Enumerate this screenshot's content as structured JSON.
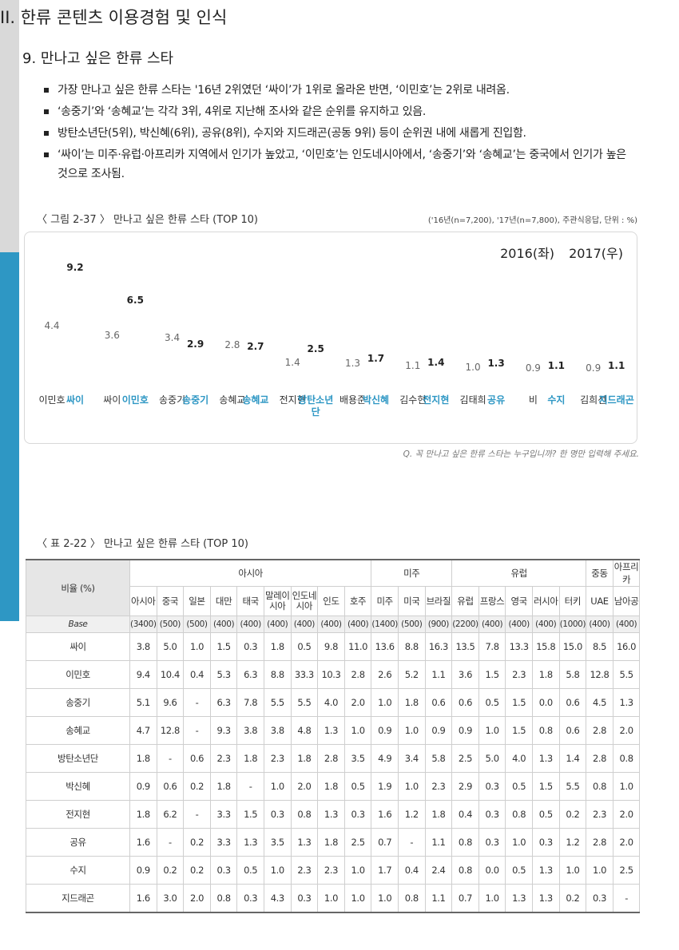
{
  "header": {
    "section": "II. 한류 콘텐츠 이용경험 및 인식",
    "subsection": "9. 만나고 싶은 한류 스타"
  },
  "bullets": [
    "가장 만나고 싶은 한류 스타는 '16년 2위였던 ‘싸이’가 1위로 올라온 반면, ‘이민호’는 2위로 내려옴.",
    "‘송중기’와 ‘송혜교’는 각각 3위, 4위로 지난해 조사와 같은 순위를 유지하고 있음.",
    "방탄소년단(5위), 박신혜(6위), 공유(8위), 수지와 지드래곤(공동 9위) 등이 순위권 내에 새롭게 진입함.",
    "‘싸이’는 미주·유럽·아프리카 지역에서 인기가 높았고, ‘이민호’는 인도네시아에서, ‘송중기’와 ‘송혜교’는 중국에서 인기가 높은 것으로 조사됨."
  ],
  "figure": {
    "caption": "〈 그림 2-37 〉 만나고 싶은 한류 스타 (TOP 10)",
    "note": "('16년(n=7,200), '17년(n=7,800), 주관식응답, 단위 : %)",
    "footnote": "Q. 꼭 만나고 싶은 한류 스타는 누구입니까? 한 명만 입력해 주세요."
  },
  "chart_data": {
    "type": "bar",
    "legend": "top-right",
    "series": [
      {
        "name": "2016(좌)",
        "color": "#d9d9d9",
        "values": [
          4.4,
          3.6,
          3.4,
          2.8,
          1.4,
          1.3,
          1.1,
          1.0,
          0.9,
          0.9
        ],
        "value_labels": [
          "4.4",
          "3.6",
          "3.4",
          "2.8",
          "1.4",
          "1.3",
          "1.1",
          "1.0",
          "0.9",
          "0.9"
        ],
        "labels": [
          "이민호",
          "싸이",
          "송중기",
          "송혜교",
          "전지현",
          "배용준",
          "김수현",
          "김태희",
          "비",
          "김희선"
        ]
      },
      {
        "name": "2017(우)",
        "color": "#2e97c4",
        "values": [
          9.2,
          6.5,
          2.9,
          2.7,
          2.5,
          1.7,
          1.4,
          1.3,
          1.1,
          1.1
        ],
        "value_labels": [
          "9.2",
          "6.5",
          "2.9",
          "2.7",
          "2.5",
          "1.7",
          "1.4",
          "1.3",
          "1.1",
          "1.1"
        ],
        "labels": [
          "싸이",
          "이민호",
          "송중기",
          "송혜교",
          "방탄소년단",
          "박신혜",
          "전지현",
          "공유",
          "수지",
          "지드래곤"
        ]
      }
    ]
  },
  "table": {
    "caption": "〈 표 2-22 〉 만나고 싶은 한류 스타 (TOP 10)",
    "corner": "비율 (%)",
    "groups": [
      {
        "label": "아시아",
        "columns": [
          "아시아",
          "중국",
          "일본",
          "대만",
          "태국",
          "말레이시아",
          "인도네시아",
          "인도",
          "호주"
        ]
      },
      {
        "label": "미주",
        "columns": [
          "미주",
          "미국",
          "브라질"
        ]
      },
      {
        "label": "유럽",
        "columns": [
          "유럽",
          "프랑스",
          "영국",
          "러시아",
          "터키"
        ]
      },
      {
        "label": "중동",
        "columns": [
          "UAE"
        ]
      },
      {
        "label": "아프리카",
        "columns": [
          "남아공"
        ]
      }
    ],
    "base": {
      "label": "Base",
      "cells": [
        "(3400)",
        "(500)",
        "(500)",
        "(400)",
        "(400)",
        "(400)",
        "(400)",
        "(400)",
        "(400)",
        "(1400)",
        "(500)",
        "(900)",
        "(2200)",
        "(400)",
        "(400)",
        "(400)",
        "(1000)",
        "(400)",
        "(400)"
      ]
    },
    "rows": [
      {
        "label": "싸이",
        "cells": [
          "3.8",
          "5.0",
          "1.0",
          "1.5",
          "0.3",
          "1.8",
          "0.5",
          "9.8",
          "11.0",
          "13.6",
          "8.8",
          "16.3",
          "13.5",
          "7.8",
          "13.3",
          "15.8",
          "15.0",
          "8.5",
          "16.0"
        ]
      },
      {
        "label": "이민호",
        "cells": [
          "9.4",
          "10.4",
          "0.4",
          "5.3",
          "6.3",
          "8.8",
          "33.3",
          "10.3",
          "2.8",
          "2.6",
          "5.2",
          "1.1",
          "3.6",
          "1.5",
          "2.3",
          "1.8",
          "5.8",
          "12.8",
          "5.5"
        ]
      },
      {
        "label": "송중기",
        "cells": [
          "5.1",
          "9.6",
          "-",
          "6.3",
          "7.8",
          "5.5",
          "5.5",
          "4.0",
          "2.0",
          "1.0",
          "1.8",
          "0.6",
          "0.6",
          "0.5",
          "1.5",
          "0.0",
          "0.6",
          "4.5",
          "1.3"
        ]
      },
      {
        "label": "송혜교",
        "cells": [
          "4.7",
          "12.8",
          "-",
          "9.3",
          "3.8",
          "3.8",
          "4.8",
          "1.3",
          "1.0",
          "0.9",
          "1.0",
          "0.9",
          "0.9",
          "1.0",
          "1.5",
          "0.8",
          "0.6",
          "2.8",
          "2.0"
        ]
      },
      {
        "label": "방탄소년단",
        "cells": [
          "1.8",
          "-",
          "0.6",
          "2.3",
          "1.8",
          "2.3",
          "1.8",
          "2.8",
          "3.5",
          "4.9",
          "3.4",
          "5.8",
          "2.5",
          "5.0",
          "4.0",
          "1.3",
          "1.4",
          "2.8",
          "0.8"
        ]
      },
      {
        "label": "박신혜",
        "cells": [
          "0.9",
          "0.6",
          "0.2",
          "1.8",
          "-",
          "1.0",
          "2.0",
          "1.8",
          "0.5",
          "1.9",
          "1.0",
          "2.3",
          "2.9",
          "0.3",
          "0.5",
          "1.5",
          "5.5",
          "0.8",
          "1.0"
        ]
      },
      {
        "label": "전지현",
        "cells": [
          "1.8",
          "6.2",
          "-",
          "3.3",
          "1.5",
          "0.3",
          "0.8",
          "1.3",
          "0.3",
          "1.6",
          "1.2",
          "1.8",
          "0.4",
          "0.3",
          "0.8",
          "0.5",
          "0.2",
          "2.3",
          "2.0"
        ]
      },
      {
        "label": "공유",
        "cells": [
          "1.6",
          "-",
          "0.2",
          "3.3",
          "1.3",
          "3.5",
          "1.3",
          "1.8",
          "2.5",
          "0.7",
          "-",
          "1.1",
          "0.8",
          "0.3",
          "1.0",
          "0.3",
          "1.2",
          "2.8",
          "2.0"
        ]
      },
      {
        "label": "수지",
        "cells": [
          "0.9",
          "0.2",
          "0.2",
          "0.3",
          "0.5",
          "1.0",
          "2.3",
          "2.3",
          "1.0",
          "1.7",
          "0.4",
          "2.4",
          "0.8",
          "0.0",
          "0.5",
          "1.3",
          "1.0",
          "1.0",
          "2.5"
        ]
      },
      {
        "label": "지드래곤",
        "cells": [
          "1.6",
          "3.0",
          "2.0",
          "0.8",
          "0.3",
          "4.3",
          "0.3",
          "1.0",
          "1.0",
          "1.0",
          "0.8",
          "1.1",
          "0.7",
          "1.0",
          "1.3",
          "1.3",
          "0.2",
          "0.3",
          "-"
        ]
      }
    ]
  }
}
